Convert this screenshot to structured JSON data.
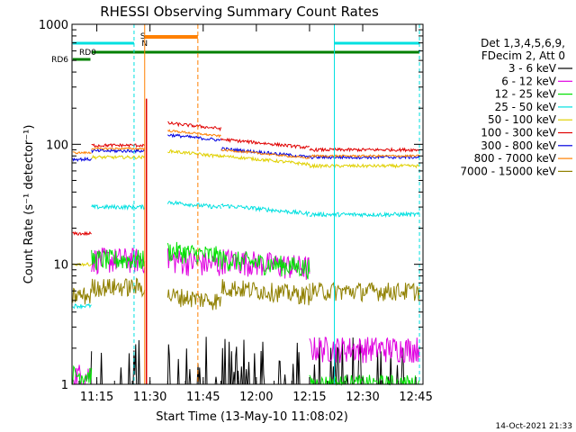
{
  "chart_data": {
    "type": "line",
    "title": "RHESSI Observing Summary Count Rates",
    "xlabel": "Start Time (13-May-10 11:08:02)",
    "ylabel": "Count Rate (s⁻¹ detector⁻¹)",
    "x_range_minutes": [
      11.13,
      12.78
    ],
    "x_ticks": [
      {
        "label": "11:15",
        "hour": 11.25
      },
      {
        "label": "11:30",
        "hour": 11.5
      },
      {
        "label": "11:45",
        "hour": 11.75
      },
      {
        "label": "12:00",
        "hour": 12.0
      },
      {
        "label": "12:15",
        "hour": 12.25
      },
      {
        "label": "12:30",
        "hour": 12.5
      },
      {
        "label": "12:45",
        "hour": 12.75
      }
    ],
    "y_scale": "log",
    "ylim": [
      1,
      1000
    ],
    "y_ticks": [
      {
        "label": "1",
        "value": 1
      },
      {
        "label": "10",
        "value": 10
      },
      {
        "label": "100",
        "value": 100
      },
      {
        "label": "1000",
        "value": 1000
      }
    ],
    "legend": {
      "placement": "right",
      "header": [
        "Det 1,3,4,5,6,9,",
        "FDecim 2, Att 0"
      ]
    },
    "series": [
      {
        "name": "3 - 6 keV",
        "color": "#000000",
        "levels": [
          1.2,
          1.0,
          1.0,
          1.3,
          1.0
        ]
      },
      {
        "name": "6 - 12 keV",
        "color": "#e000e0",
        "levels": [
          1.2,
          11,
          11,
          11,
          2.0
        ]
      },
      {
        "name": "12 - 25 keV",
        "color": "#00e000",
        "levels": [
          1.2,
          11,
          13,
          11,
          1.0
        ]
      },
      {
        "name": "25 - 50 keV",
        "color": "#00e0e0",
        "levels": [
          4.5,
          30,
          33,
          31,
          26
        ]
      },
      {
        "name": "50 - 100 keV",
        "color": "#e0d000",
        "levels": [
          10,
          78,
          88,
          80,
          66
        ]
      },
      {
        "name": "100 - 300 keV",
        "color": "#e00000",
        "levels": [
          18,
          98,
          150,
          110,
          90
        ]
      },
      {
        "name": "300 - 800 keV",
        "color": "#0000e0",
        "levels": [
          75,
          88,
          120,
          92,
          78
        ]
      },
      {
        "name": "800 - 7000 keV",
        "color": "#ff8000",
        "levels": [
          85,
          92,
          130,
          90,
          80
        ]
      },
      {
        "name": "7000 - 15000 keV",
        "color": "#908000",
        "levels": [
          5.5,
          6.5,
          5.5,
          6.5,
          6.0
        ]
      }
    ],
    "flags": [
      {
        "name": "SAA",
        "label": "S",
        "color": "#ff8000"
      },
      {
        "name": "Night",
        "label": "N",
        "color": "#00e0e0"
      },
      {
        "name": "RD0",
        "label": "RD0",
        "color": "#008000"
      },
      {
        "name": "RD6",
        "label": "RD6",
        "color": "#008000"
      }
    ]
  },
  "footer": {
    "timestamp": "14-Oct-2021 21:33"
  }
}
